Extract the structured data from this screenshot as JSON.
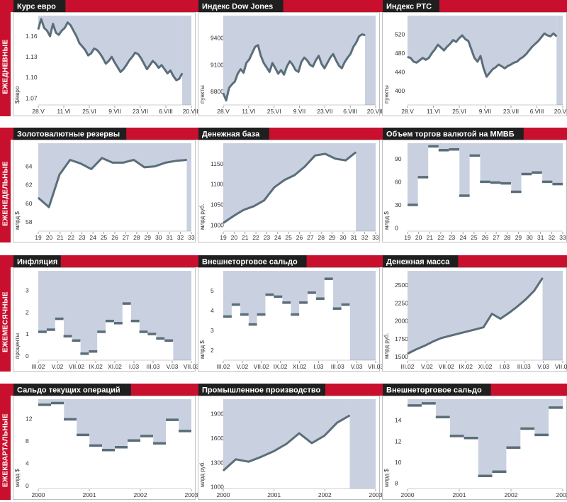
{
  "colors": {
    "accent": "#c8102e",
    "dark": "#1f1f1f",
    "shade": "#c9d0e0",
    "line": "#5a6e7a",
    "frame": "#bfbfbf"
  },
  "sections": [
    {
      "label": "ЕЖЕДНЕВНЫЕ"
    },
    {
      "label": "ЕЖЕНЕДЕЛЬНЫЕ"
    },
    {
      "label": "ЕЖЕМЕСЯЧНЫЕ"
    },
    {
      "label": "ЕЖЕКВАРТАЛЬНЫЕ"
    }
  ],
  "chart_data": [
    {
      "id": "eur",
      "type": "line",
      "title": "Курс евро",
      "ylabel": "$/евро",
      "ylim": [
        1.06,
        1.19
      ],
      "yticks": [
        "1.07",
        "1.10",
        "1.13",
        "1.16"
      ],
      "ytick_values": [
        1.07,
        1.1,
        1.13,
        1.16
      ],
      "xlabels": [
        "28.V",
        "11.VI",
        "25.VI",
        "9.VII",
        "23.VII",
        "6.VIII",
        "20.VIII"
      ],
      "values": [
        1.17,
        1.185,
        1.172,
        1.168,
        1.16,
        1.178,
        1.165,
        1.162,
        1.168,
        1.172,
        1.18,
        1.176,
        1.168,
        1.16,
        1.15,
        1.145,
        1.14,
        1.132,
        1.135,
        1.142,
        1.14,
        1.135,
        1.128,
        1.12,
        1.124,
        1.13,
        1.122,
        1.115,
        1.108,
        1.112,
        1.118,
        1.125,
        1.13,
        1.136,
        1.134,
        1.128,
        1.12,
        1.112,
        1.118,
        1.124,
        1.12,
        1.114,
        1.118,
        1.112,
        1.106,
        1.11,
        1.102,
        1.096,
        1.098,
        1.106
      ],
      "shade_to": 0.94
    },
    {
      "id": "dow",
      "type": "line",
      "title": "Индекс Dow Jones",
      "ylabel": "пункты",
      "ylim": [
        8650,
        9650
      ],
      "yticks": [
        "8800",
        "9100",
        "9400"
      ],
      "ytick_values": [
        8800,
        9100,
        9400
      ],
      "xlabels": [
        "28.V",
        "11.VI",
        "25.VI",
        "9.VII",
        "23.VII",
        "6.VIII",
        "20.VIII"
      ],
      "values": [
        8780,
        8700,
        8840,
        8880,
        8910,
        9000,
        9050,
        9010,
        9120,
        9160,
        9230,
        9300,
        9320,
        9200,
        9120,
        9070,
        9020,
        9120,
        9060,
        9000,
        9040,
        8990,
        9080,
        9140,
        9100,
        9040,
        9020,
        9130,
        9180,
        9150,
        9100,
        9080,
        9150,
        9200,
        9110,
        9060,
        9120,
        9180,
        9220,
        9150,
        9090,
        9060,
        9130,
        9180,
        9220,
        9300,
        9350,
        9420,
        9440,
        9430
      ],
      "shade_to": 0.93
    },
    {
      "id": "rts",
      "type": "line",
      "title": "Индекс РТС",
      "ylabel": "пункты",
      "ylim": [
        370,
        560
      ],
      "yticks": [
        "400",
        "440",
        "480",
        "520"
      ],
      "ytick_values": [
        400,
        440,
        480,
        520
      ],
      "xlabels": [
        "28.V",
        "11.VI",
        "25.VI",
        "9.VII",
        "23.VII",
        "6.VIII",
        "20.VIII"
      ],
      "values": [
        472,
        470,
        462,
        460,
        465,
        470,
        466,
        470,
        480,
        488,
        498,
        492,
        486,
        494,
        500,
        508,
        504,
        512,
        518,
        510,
        506,
        488,
        470,
        462,
        474,
        448,
        430,
        438,
        446,
        450,
        456,
        452,
        448,
        453,
        456,
        460,
        462,
        468,
        472,
        478,
        486,
        494,
        500,
        506,
        514,
        522,
        518,
        516,
        522,
        516
      ],
      "shade_to": 0.96
    },
    {
      "id": "reserves",
      "type": "line",
      "title": "Золотовалютные резервы",
      "ylabel": "млрд $",
      "ylim": [
        57,
        66.5
      ],
      "yticks": [
        "58",
        "60",
        "62",
        "64"
      ],
      "ytick_values": [
        58,
        60,
        62,
        64
      ],
      "xlabels": [
        "19",
        "20",
        "21",
        "22",
        "23",
        "24",
        "25",
        "26",
        "27",
        "28",
        "29",
        "30",
        "31",
        "32",
        "33"
      ],
      "values": [
        60.6,
        59.6,
        63.1,
        64.7,
        64.3,
        63.7,
        64.9,
        64.4,
        64.4,
        64.7,
        63.9,
        64.0,
        64.4,
        64.6,
        64.7
      ],
      "shade_to": 0.97
    },
    {
      "id": "monbase",
      "type": "line",
      "title": "Денежная база",
      "ylabel": "млрд руб.",
      "ylim": [
        985,
        1200
      ],
      "yticks": [
        "1000",
        "1050",
        "1100",
        "1150"
      ],
      "ytick_values": [
        1000,
        1050,
        1100,
        1150
      ],
      "xlabels": [
        "19",
        "20",
        "21",
        "22",
        "23",
        "24",
        "25",
        "26",
        "27",
        "28",
        "29",
        "30",
        "31",
        "32",
        "33"
      ],
      "values": [
        1005,
        1022,
        1037,
        1046,
        1060,
        1092,
        1110,
        1122,
        1143,
        1170,
        1174,
        1162,
        1158,
        1178
      ],
      "shade_to": 0.87
    },
    {
      "id": "micex",
      "type": "step",
      "title": "Объем торгов валютой на ММВБ",
      "ylabel": "млрд $",
      "ylim": [
        -4,
        110
      ],
      "yticks": [
        "0",
        "30",
        "60",
        "90"
      ],
      "ytick_values": [
        0,
        30,
        60,
        90
      ],
      "xlabels": [
        "19",
        "20",
        "21",
        "22",
        "23",
        "24",
        "25",
        "26",
        "27",
        "28",
        "29",
        "30",
        "31",
        "32",
        "33"
      ],
      "values": [
        30,
        66,
        106,
        101,
        102,
        42,
        94,
        60,
        59,
        58,
        47,
        70,
        72,
        60,
        57
      ]
    },
    {
      "id": "inflation",
      "type": "step",
      "title": "Инфляция",
      "ylabel": "проценты",
      "ylim": [
        -0.2,
        3.9
      ],
      "yticks": [
        "0",
        "1",
        "2",
        "3"
      ],
      "ytick_values": [
        0,
        1,
        2,
        3
      ],
      "xlabels": [
        "III.02",
        "V.02",
        "VII.02",
        "IX.02",
        "XI.02",
        "I.03",
        "III.03",
        "V.03",
        "VII.03"
      ],
      "values": [
        1.1,
        1.2,
        1.7,
        0.9,
        0.7,
        0.1,
        0.2,
        1.1,
        1.6,
        1.5,
        2.4,
        1.6,
        1.1,
        1.0,
        0.8,
        0.7
      ],
      "shade_to": 0.88
    },
    {
      "id": "tradebal_m",
      "type": "step",
      "title": "Внешнеторговое сальдо",
      "ylabel": "млрд $",
      "ylim": [
        1.5,
        6.0
      ],
      "yticks": [
        "2",
        "3",
        "4",
        "5"
      ],
      "ytick_values": [
        2,
        3,
        4,
        5
      ],
      "xlabels": [
        "III.02",
        "V.02",
        "VII.02",
        "IX.02",
        "XI.02",
        "I.03",
        "III.03",
        "V.03",
        "VII.03"
      ],
      "values": [
        3.7,
        4.3,
        3.8,
        3.3,
        3.8,
        4.8,
        4.7,
        4.4,
        3.8,
        4.4,
        4.9,
        4.6,
        5.6,
        4.1,
        4.3
      ],
      "shade_to": 0.83
    },
    {
      "id": "money",
      "type": "line",
      "title": "Денежная масса",
      "ylabel": "млрд руб.",
      "ylim": [
        1450,
        2700
      ],
      "yticks": [
        "1500",
        "1750",
        "2000",
        "2250",
        "2500"
      ],
      "ytick_values": [
        1500,
        1750,
        2000,
        2250,
        2500
      ],
      "xlabels": [
        "III.02",
        "V.02",
        "VII.02",
        "IX.02",
        "XI.02",
        "I.03",
        "III.03",
        "V.03",
        "VII.03"
      ],
      "values": [
        1540,
        1600,
        1650,
        1710,
        1760,
        1790,
        1820,
        1850,
        1880,
        1910,
        2100,
        2030,
        2110,
        2200,
        2300,
        2420,
        2600
      ],
      "shade_to": 0.87
    },
    {
      "id": "current",
      "type": "step",
      "title": "Сальдо текущих операций",
      "ylabel": "млрд $",
      "ylim": [
        -0.5,
        15.5
      ],
      "yticks": [
        "0",
        "4",
        "8",
        "12"
      ],
      "ytick_values": [
        0,
        4,
        8,
        12
      ],
      "xlabels": [
        "2000",
        "2001",
        "2002",
        "2003"
      ],
      "values": [
        14.5,
        14.8,
        11.9,
        9.1,
        7.2,
        6.4,
        6.9,
        8.1,
        8.9,
        7.6,
        11.8,
        9.8
      ]
    },
    {
      "id": "industry",
      "type": "line",
      "title": "Промышленное производство",
      "ylabel": "млрд руб.",
      "ylim": [
        980,
        2080
      ],
      "yticks": [
        "1000",
        "1300",
        "1600",
        "1900"
      ],
      "ytick_values": [
        1000,
        1300,
        1600,
        1900
      ],
      "xlabels": [
        "2000",
        "2001",
        "2002",
        "2003"
      ],
      "values": [
        1200,
        1340,
        1310,
        1370,
        1440,
        1530,
        1660,
        1540,
        1630,
        1790,
        1880
      ],
      "shade_to": 0.83
    },
    {
      "id": "tradebal_q",
      "type": "step",
      "title": "Внешнеторговое сальдо",
      "ylabel": "млрд $",
      "ylim": [
        7.5,
        16.0
      ],
      "yticks": [
        "8",
        "10",
        "12",
        "14"
      ],
      "ytick_values": [
        8,
        10,
        12,
        14
      ],
      "xlabels": [
        "2000",
        "2001",
        "2002",
        "2003"
      ],
      "values": [
        15.4,
        15.6,
        14.3,
        12.5,
        12.3,
        8.7,
        9.1,
        11.4,
        13.2,
        12.6,
        15.2
      ]
    }
  ]
}
